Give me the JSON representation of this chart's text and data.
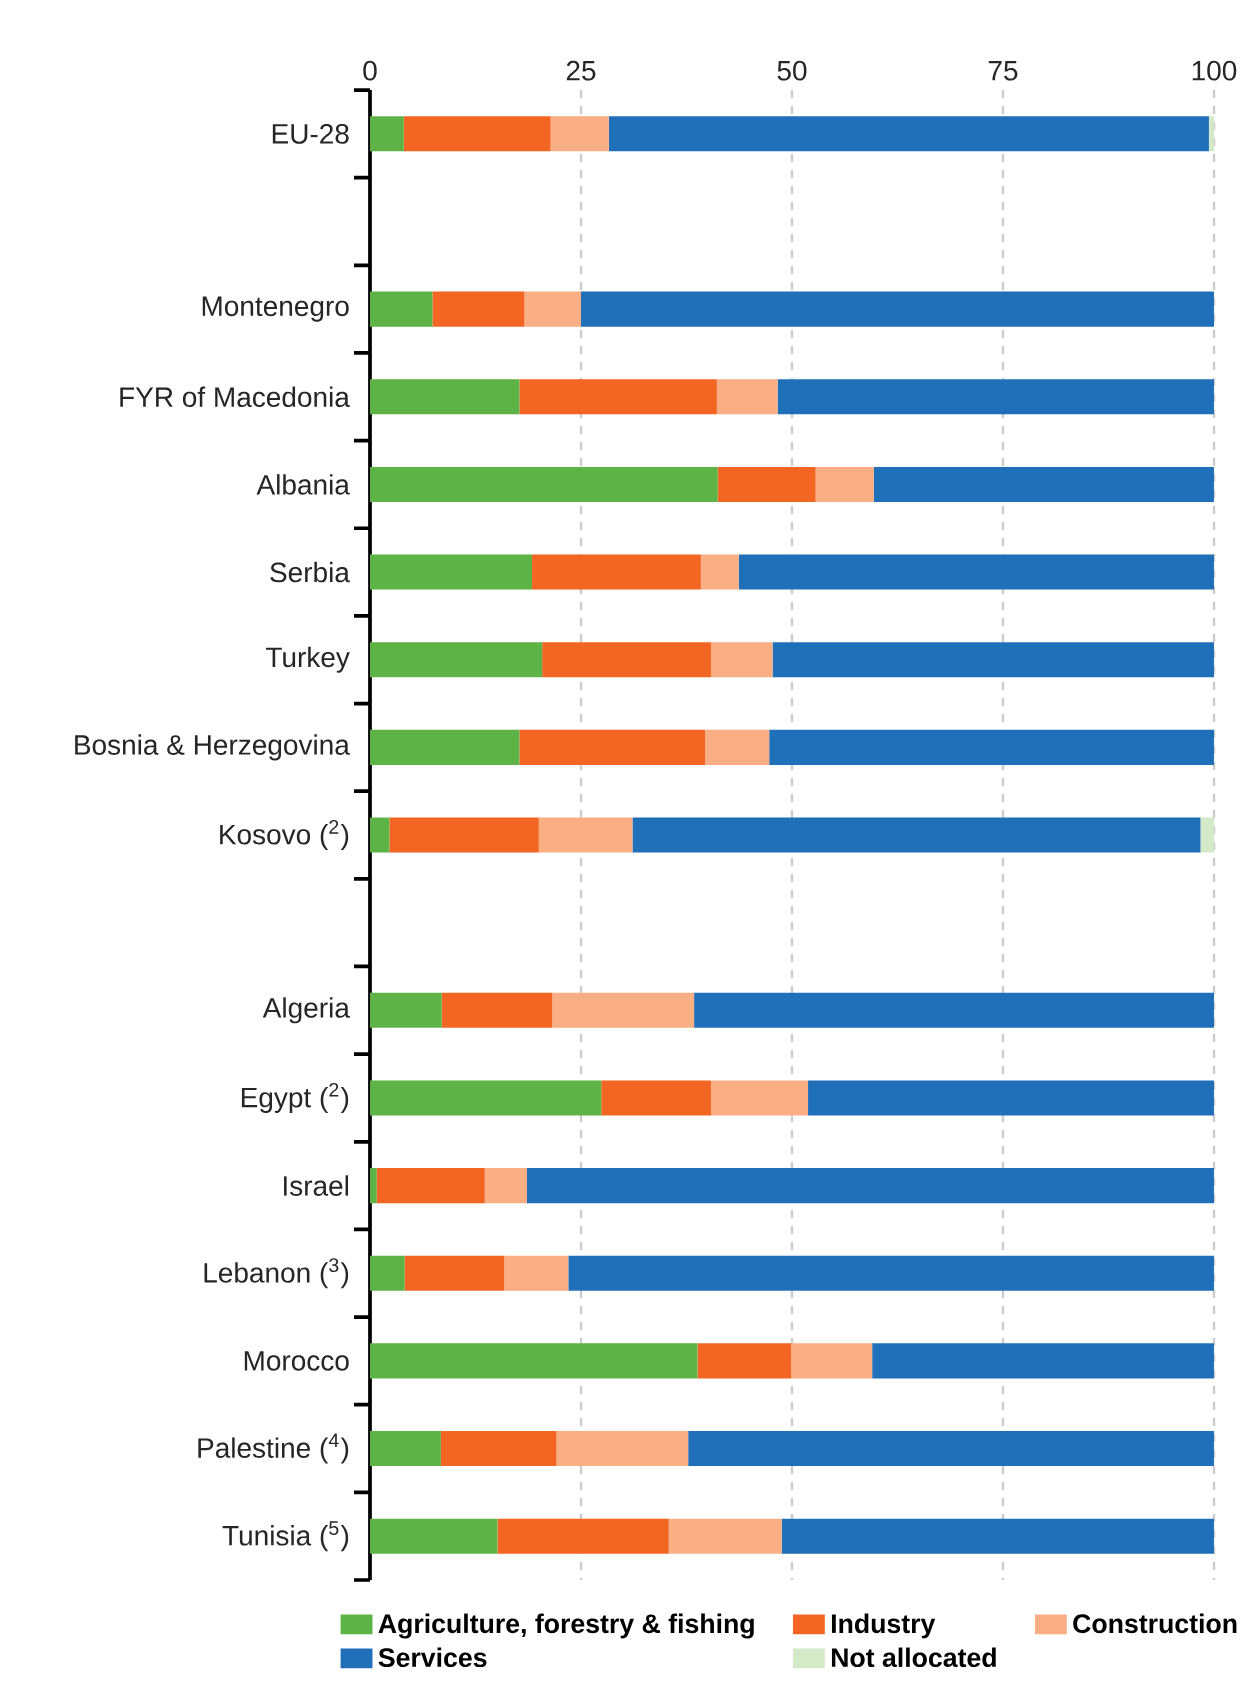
{
  "chart_data": {
    "type": "bar",
    "orientation": "horizontal",
    "stacked": true,
    "grid": "x",
    "legend": "bottom",
    "xlim": [
      0,
      100
    ],
    "xticks": [
      0,
      25,
      50,
      75,
      100
    ],
    "categories": [
      "EU-28",
      null,
      "Montenegro",
      "FYR of Macedonia",
      "Albania",
      "Serbia",
      "Turkey",
      "Bosnia & Herzegovina",
      "Kosovo ($^{2}$)",
      null,
      "Algeria",
      "Egypt ($^{2}$)",
      "Israel",
      "Lebanon ($^{3}$)",
      "Morocco",
      "Palestine ($^{4}$)",
      "Tunisia ($^{5}$)"
    ],
    "series": [
      {
        "name": "Agriculture, forestry & fishing",
        "color": "#5db346",
        "values": [
          4.0,
          null,
          7.4,
          17.7,
          41.2,
          19.2,
          20.4,
          17.7,
          2.3,
          null,
          8.5,
          27.4,
          0.8,
          4.1,
          38.8,
          8.4,
          15.1
        ]
      },
      {
        "name": "Industry",
        "color": "#f26522",
        "values": [
          17.4,
          null,
          10.9,
          23.4,
          11.6,
          20.0,
          20.0,
          22.0,
          17.7,
          null,
          13.1,
          13.0,
          12.8,
          11.8,
          11.1,
          13.7,
          20.3
        ]
      },
      {
        "name": "Construction",
        "color": "#f9ae84",
        "values": [
          6.9,
          null,
          6.7,
          7.2,
          6.9,
          4.5,
          7.3,
          7.6,
          11.1,
          null,
          16.8,
          11.5,
          5.0,
          7.6,
          9.6,
          15.6,
          13.4
        ]
      },
      {
        "name": "Services",
        "color": "#1f70b8",
        "values": [
          71.1,
          null,
          75.0,
          51.7,
          40.3,
          56.3,
          52.3,
          52.7,
          67.3,
          null,
          61.6,
          48.1,
          81.4,
          76.5,
          40.5,
          62.3,
          51.2
        ]
      },
      {
        "name": "Not allocated",
        "color": "#d4e9c8",
        "values": [
          0.6,
          null,
          null,
          null,
          null,
          null,
          null,
          null,
          1.6,
          null,
          null,
          null,
          null,
          null,
          null,
          null,
          null
        ]
      }
    ]
  }
}
